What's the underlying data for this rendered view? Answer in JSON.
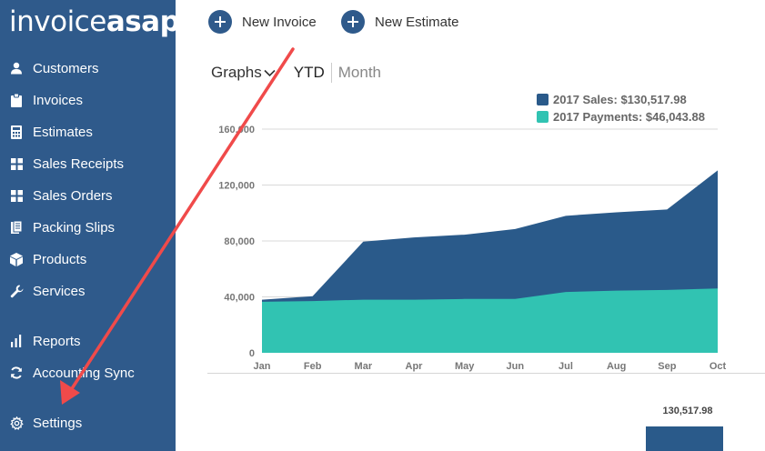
{
  "app": {
    "logo_text_light": "invoice",
    "logo_text_bold": "asap"
  },
  "sidebar": {
    "items": [
      {
        "label": "Customers",
        "icon": "user-icon"
      },
      {
        "label": "Invoices",
        "icon": "clipboard-icon"
      },
      {
        "label": "Estimates",
        "icon": "calculator-icon"
      },
      {
        "label": "Sales Receipts",
        "icon": "grid-icon"
      },
      {
        "label": "Sales Orders",
        "icon": "grid-icon"
      },
      {
        "label": "Packing Slips",
        "icon": "packing-slips-icon"
      },
      {
        "label": "Products",
        "icon": "box-icon"
      },
      {
        "label": "Services",
        "icon": "wrench-icon"
      },
      {
        "label": "Reports",
        "icon": "bar-chart-icon"
      },
      {
        "label": "Accounting Sync",
        "icon": "sync-icon"
      },
      {
        "label": "Settings",
        "icon": "gear-icon"
      }
    ]
  },
  "toolbar": {
    "new_invoice_label": "New Invoice",
    "new_estimate_label": "New Estimate"
  },
  "view": {
    "graphs_label": "Graphs",
    "tab_ytd": "YTD",
    "tab_month": "Month",
    "active_tab": "YTD"
  },
  "colors": {
    "sidebar_bg": "#2f5a8b",
    "sales": "#2a5a8a",
    "payments": "#31c3b2",
    "annotation_arrow": "#f04a4a"
  },
  "chart_data": {
    "type": "area",
    "categories": [
      "Jan",
      "Feb",
      "Mar",
      "Apr",
      "May",
      "Jun",
      "Jul",
      "Aug",
      "Sep",
      "Oct"
    ],
    "series": [
      {
        "name": "2017 Sales: $130,517.98",
        "values": [
          38000,
          40500,
          79500,
          82500,
          84500,
          88500,
          98000,
          100500,
          102500,
          130517.98
        ]
      },
      {
        "name": "2017 Payments: $46,043.88",
        "values": [
          36500,
          37000,
          38000,
          38000,
          38500,
          38500,
          43500,
          44500,
          45000,
          46043.88
        ]
      }
    ],
    "yticks": [
      "0",
      "40,000",
      "80,000",
      "120,000",
      "160,000"
    ],
    "ylim": [
      0,
      160000
    ],
    "grid": true,
    "legend_position": "top-right",
    "total_label": "130,517.98"
  }
}
